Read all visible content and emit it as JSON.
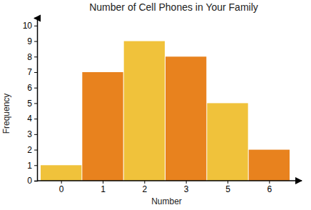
{
  "chart_data": {
    "type": "bar",
    "title": "Number of Cell Phones in Your Family",
    "x_label": "Number",
    "y_label": "Frequency",
    "categories": [
      "0",
      "1",
      "2",
      "3",
      "5",
      "6"
    ],
    "values": [
      1,
      7,
      9,
      8,
      5,
      2
    ],
    "colors": [
      "#f0c23b",
      "#e8821e",
      "#f0c23b",
      "#e8821e",
      "#f0c23b",
      "#e8821e"
    ],
    "ylim": [
      0,
      10.5
    ],
    "yticks": [
      0,
      1,
      2,
      3,
      4,
      5,
      6,
      7,
      8,
      9,
      10
    ],
    "grid": false
  }
}
